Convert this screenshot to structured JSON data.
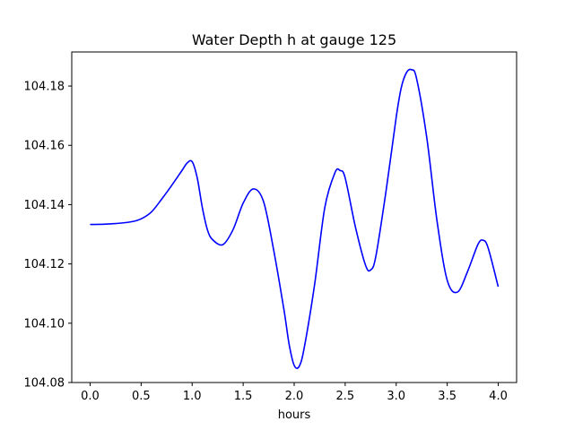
{
  "chart_data": {
    "type": "line",
    "title": "Water Depth h at gauge 125",
    "xlabel": "hours",
    "ylabel": "",
    "xlim": [
      -0.18,
      4.18
    ],
    "ylim": [
      104.08,
      104.1915
    ],
    "xticks": [
      0.0,
      0.5,
      1.0,
      1.5,
      2.0,
      2.5,
      3.0,
      3.5,
      4.0
    ],
    "xtick_labels": [
      "0.0",
      "0.5",
      "1.0",
      "1.5",
      "2.0",
      "2.5",
      "3.0",
      "3.5",
      "4.0"
    ],
    "yticks": [
      104.08,
      104.1,
      104.12,
      104.14,
      104.16,
      104.18
    ],
    "ytick_labels": [
      "104.08",
      "104.10",
      "104.12",
      "104.14",
      "104.16",
      "104.18"
    ],
    "grid": false,
    "series": [
      {
        "color": "#0000ff",
        "x": [
          0.0,
          0.2,
          0.4,
          0.5,
          0.6,
          0.7,
          0.8,
          0.9,
          0.95,
          1.0,
          1.05,
          1.1,
          1.15,
          1.2,
          1.3,
          1.4,
          1.5,
          1.6,
          1.7,
          1.8,
          1.9,
          1.95,
          2.0,
          2.05,
          2.1,
          2.2,
          2.3,
          2.4,
          2.45,
          2.5,
          2.6,
          2.7,
          2.75,
          2.8,
          2.9,
          3.0,
          3.05,
          3.1,
          3.15,
          3.2,
          3.3,
          3.4,
          3.5,
          3.6,
          3.7,
          3.8,
          3.85,
          3.9,
          4.0
        ],
        "y": [
          104.1333,
          104.1335,
          104.1342,
          104.1352,
          104.1375,
          104.1418,
          104.1465,
          104.1515,
          104.154,
          104.1545,
          104.149,
          104.139,
          104.1315,
          104.1282,
          104.1265,
          104.1315,
          104.1405,
          104.1453,
          104.141,
          104.1245,
          104.1045,
          104.093,
          104.0858,
          104.0855,
          104.092,
          104.113,
          104.139,
          104.1508,
          104.1515,
          104.149,
          104.1325,
          104.1195,
          104.118,
          104.1225,
          104.1445,
          104.1695,
          104.1795,
          104.1845,
          104.1855,
          104.1825,
          104.1625,
          104.1345,
          104.1145,
          104.1105,
          104.1175,
          104.1265,
          104.128,
          104.1255,
          104.1123
        ]
      }
    ]
  }
}
